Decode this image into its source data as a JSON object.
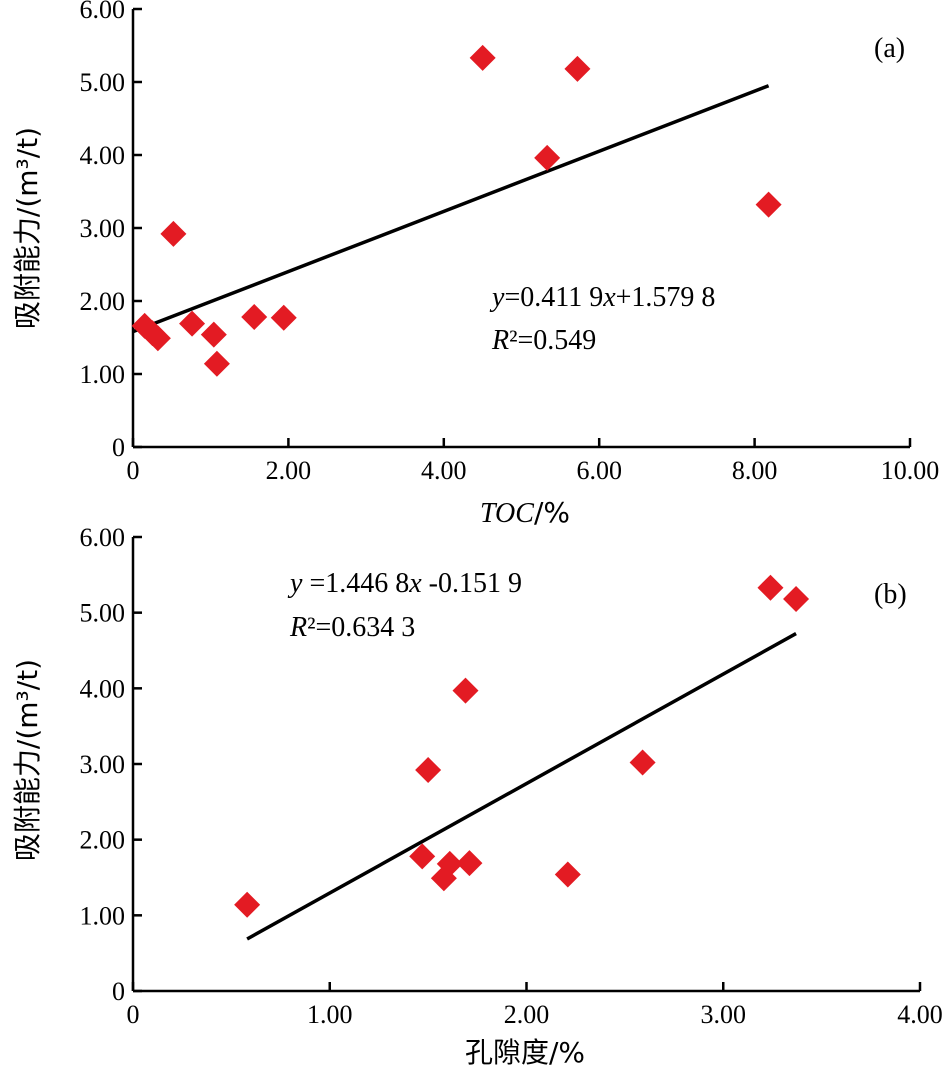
{
  "chart_data": [
    {
      "type": "scatter",
      "panel_label": "(a)",
      "xlabel": "TOC/%",
      "ylabel": "吸附能力/(m³/t)",
      "xlim": [
        0,
        10
      ],
      "ylim": [
        0,
        6
      ],
      "x_ticks": [
        0,
        2,
        4,
        6,
        8,
        10
      ],
      "x_tick_labels": [
        "0",
        "2.00",
        "4.00",
        "6.00",
        "8.00",
        "10.00"
      ],
      "y_ticks": [
        0,
        1,
        2,
        3,
        4,
        5,
        6
      ],
      "y_tick_labels": [
        "0",
        "1.00",
        "2.00",
        "3.00",
        "4.00",
        "5.00",
        "6.00"
      ],
      "points": [
        {
          "x": 0.15,
          "y": 1.66
        },
        {
          "x": 0.25,
          "y": 1.56
        },
        {
          "x": 0.32,
          "y": 1.49
        },
        {
          "x": 0.52,
          "y": 2.92
        },
        {
          "x": 0.76,
          "y": 1.69
        },
        {
          "x": 1.04,
          "y": 1.54
        },
        {
          "x": 1.08,
          "y": 1.14
        },
        {
          "x": 1.56,
          "y": 1.78
        },
        {
          "x": 1.94,
          "y": 1.77
        },
        {
          "x": 4.5,
          "y": 5.33
        },
        {
          "x": 5.33,
          "y": 3.96
        },
        {
          "x": 5.72,
          "y": 5.18
        },
        {
          "x": 8.18,
          "y": 3.32
        }
      ],
      "trendline": {
        "slope": 0.4119,
        "intercept": 1.5798,
        "x_range": [
          0,
          8.18
        ]
      },
      "equation": "y=0.411 9x+1.579 8",
      "r_squared": "R²=0.549"
    },
    {
      "type": "scatter",
      "panel_label": "(b)",
      "xlabel": "孔隙度/%",
      "ylabel": "吸附能力/(m³/t)",
      "xlim": [
        0,
        4
      ],
      "ylim": [
        0,
        6
      ],
      "x_ticks": [
        0,
        1,
        2,
        3,
        4
      ],
      "x_tick_labels": [
        "0",
        "1.00",
        "2.00",
        "3.00",
        "4.00"
      ],
      "y_ticks": [
        0,
        1,
        2,
        3,
        4,
        5,
        6
      ],
      "y_tick_labels": [
        "0",
        "1.00",
        "2.00",
        "3.00",
        "4.00",
        "5.00",
        "6.00"
      ],
      "points": [
        {
          "x": 0.58,
          "y": 1.14
        },
        {
          "x": 1.47,
          "y": 1.78
        },
        {
          "x": 1.5,
          "y": 2.92
        },
        {
          "x": 1.58,
          "y": 1.49
        },
        {
          "x": 1.61,
          "y": 1.68
        },
        {
          "x": 1.69,
          "y": 3.97
        },
        {
          "x": 1.71,
          "y": 1.69
        },
        {
          "x": 2.21,
          "y": 1.54
        },
        {
          "x": 2.59,
          "y": 3.02
        },
        {
          "x": 3.24,
          "y": 5.33
        },
        {
          "x": 3.37,
          "y": 5.18
        }
      ],
      "trendline": {
        "slope": 1.4468,
        "intercept": -0.1519,
        "x_range": [
          0.58,
          3.37
        ]
      },
      "equation": "y =1.446 8x -0.151 9",
      "r_squared": "R²=0.634 3"
    }
  ]
}
